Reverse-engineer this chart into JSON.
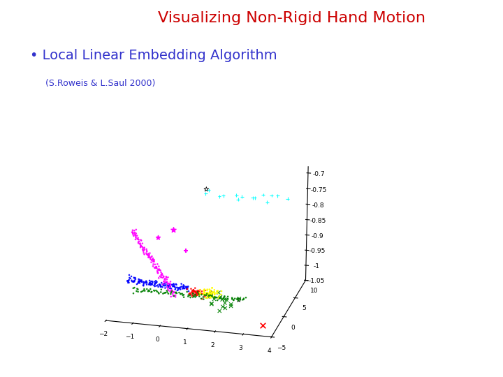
{
  "title": "Visualizing Non-Rigid Hand Motion",
  "title_color": "#cc0000",
  "subtitle": "Local Linear Embedding Algorithm",
  "subtitle_bullet": "•",
  "subtitle_color": "#3333cc",
  "citation": "(S.Roweis & L.Saul 2000)",
  "citation_color": "#3333cc",
  "bg_color": "#ffffff",
  "title_fontsize": 16,
  "subtitle_fontsize": 14,
  "citation_fontsize": 9,
  "seed": 42,
  "elev": 18,
  "azim": -75
}
